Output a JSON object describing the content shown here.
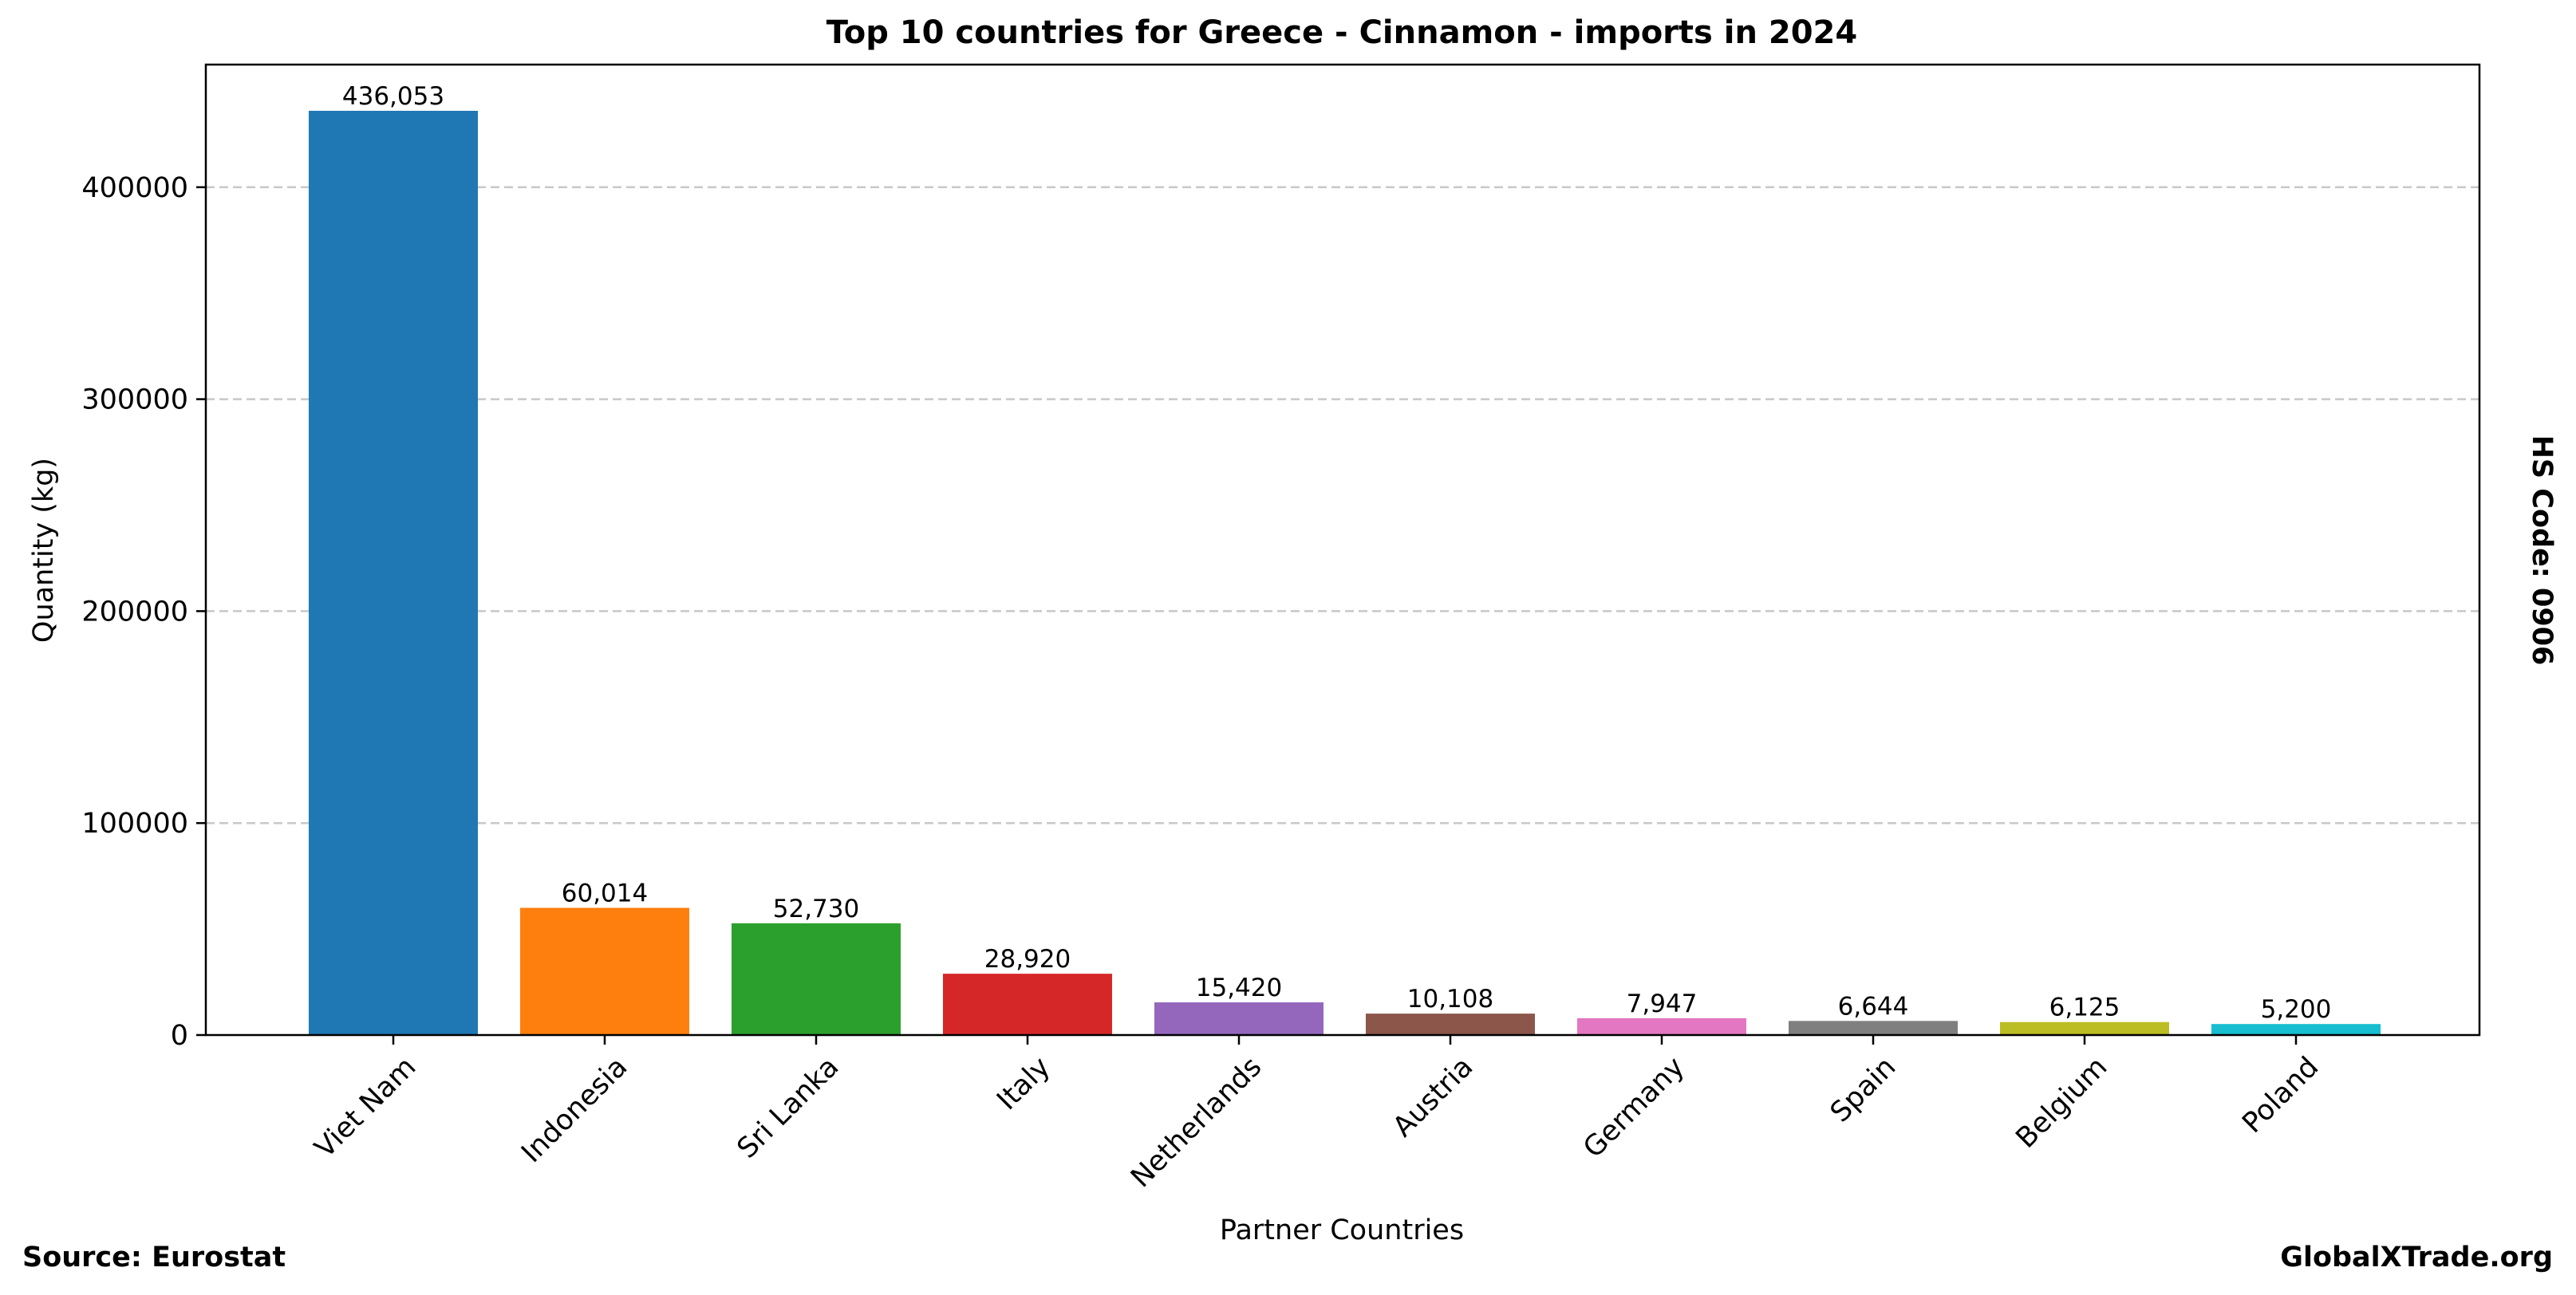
{
  "chart_data": {
    "type": "bar",
    "title": "Top 10 countries for Greece - Cinnamon - imports in 2024",
    "xlabel": "Partner Countries",
    "ylabel": "Quantity (kg)",
    "categories": [
      "Viet Nam",
      "Indonesia",
      "Sri Lanka",
      "Italy",
      "Netherlands",
      "Austria",
      "Germany",
      "Spain",
      "Belgium",
      "Poland"
    ],
    "values": [
      436053,
      60014,
      52730,
      28920,
      15420,
      10108,
      7947,
      6644,
      6125,
      5200
    ],
    "value_labels": [
      "436,053",
      "60,014",
      "52,730",
      "28,920",
      "15,420",
      "10,108",
      "7,947",
      "6,644",
      "6,125",
      "5,200"
    ],
    "colors": [
      "#1f77b4",
      "#ff7f0e",
      "#2ca02c",
      "#d62728",
      "#9467bd",
      "#8c564b",
      "#e377c2",
      "#7f7f7f",
      "#bcbd22",
      "#17becf"
    ],
    "yticks": [
      0,
      100000,
      200000,
      300000,
      400000
    ],
    "ytick_labels": [
      "0",
      "100000",
      "200000",
      "300000",
      "400000"
    ],
    "ylim": [
      0,
      457856
    ],
    "grid": "horizontal dashed",
    "legend": "none"
  },
  "annotations": {
    "side_label": "HS Code: 0906",
    "source": "Source: Eurostat",
    "brand": "GlobalXTrade.org"
  }
}
